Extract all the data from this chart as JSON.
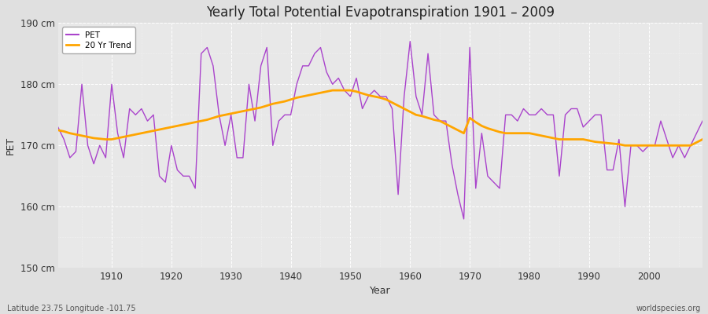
{
  "title": "Yearly Total Potential Evapotranspiration 1901 – 2009",
  "xlabel": "Year",
  "ylabel": "PET",
  "lat_lon_label": "Latitude 23.75 Longitude -101.75",
  "source_label": "worldspecies.org",
  "pet_color": "#AA44CC",
  "trend_color": "#FFA500",
  "fig_bg_color": "#E0E0E0",
  "plot_bg_color": "#E8E8E8",
  "ylim": [
    150,
    190
  ],
  "yticks": [
    150,
    160,
    170,
    180,
    190
  ],
  "ytick_labels": [
    "150 cm",
    "160 cm",
    "170 cm",
    "180 cm",
    "190 cm"
  ],
  "xlim": [
    1901,
    2009
  ],
  "years": [
    1901,
    1902,
    1903,
    1904,
    1905,
    1906,
    1907,
    1908,
    1909,
    1910,
    1911,
    1912,
    1913,
    1914,
    1915,
    1916,
    1917,
    1918,
    1919,
    1920,
    1921,
    1922,
    1923,
    1924,
    1925,
    1926,
    1927,
    1928,
    1929,
    1930,
    1931,
    1932,
    1933,
    1934,
    1935,
    1936,
    1937,
    1938,
    1939,
    1940,
    1941,
    1942,
    1943,
    1944,
    1945,
    1946,
    1947,
    1948,
    1949,
    1950,
    1951,
    1952,
    1953,
    1954,
    1955,
    1956,
    1957,
    1958,
    1959,
    1960,
    1961,
    1962,
    1963,
    1964,
    1965,
    1966,
    1967,
    1968,
    1969,
    1970,
    1971,
    1972,
    1973,
    1974,
    1975,
    1976,
    1977,
    1978,
    1979,
    1980,
    1981,
    1982,
    1983,
    1984,
    1985,
    1986,
    1987,
    1988,
    1989,
    1990,
    1991,
    1992,
    1993,
    1994,
    1995,
    1996,
    1997,
    1998,
    1999,
    2000,
    2001,
    2002,
    2003,
    2004,
    2005,
    2006,
    2007,
    2008,
    2009
  ],
  "pet_values": [
    173,
    171,
    168,
    169,
    180,
    170,
    167,
    170,
    168,
    180,
    172,
    168,
    176,
    175,
    176,
    174,
    175,
    165,
    164,
    170,
    166,
    165,
    165,
    163,
    185,
    186,
    183,
    175,
    170,
    175,
    168,
    168,
    180,
    174,
    183,
    186,
    170,
    174,
    175,
    175,
    180,
    183,
    183,
    185,
    186,
    182,
    180,
    181,
    179,
    178,
    181,
    176,
    178,
    179,
    178,
    178,
    176,
    162,
    178,
    187,
    178,
    175,
    185,
    175,
    174,
    174,
    167,
    162,
    158,
    186,
    163,
    172,
    165,
    164,
    163,
    175,
    175,
    174,
    176,
    175,
    175,
    176,
    175,
    175,
    165,
    175,
    176,
    176,
    173,
    174,
    175,
    175,
    166,
    166,
    171,
    160,
    170,
    170,
    169,
    170,
    170,
    174,
    171,
    168,
    170,
    168,
    170,
    172,
    174
  ],
  "trend_values": [
    172.5,
    172.3,
    172.0,
    171.8,
    171.6,
    171.4,
    171.2,
    171.1,
    171.0,
    171.0,
    171.2,
    171.4,
    171.6,
    171.8,
    172.0,
    172.2,
    172.4,
    172.6,
    172.8,
    173.0,
    173.2,
    173.4,
    173.6,
    173.8,
    174.0,
    174.2,
    174.5,
    174.8,
    175.0,
    175.2,
    175.4,
    175.6,
    175.8,
    176.0,
    176.2,
    176.5,
    176.8,
    177.0,
    177.2,
    177.5,
    177.8,
    178.0,
    178.2,
    178.4,
    178.6,
    178.8,
    179.0,
    179.0,
    179.0,
    179.0,
    178.8,
    178.5,
    178.2,
    178.0,
    177.8,
    177.5,
    177.0,
    176.5,
    176.0,
    175.5,
    175.0,
    174.8,
    174.5,
    174.2,
    174.0,
    173.5,
    173.0,
    172.5,
    172.0,
    174.5,
    173.8,
    173.2,
    172.8,
    172.5,
    172.2,
    172.0,
    172.0,
    172.0,
    172.0,
    172.0,
    171.8,
    171.6,
    171.4,
    171.2,
    171.0,
    171.0,
    171.0,
    171.0,
    171.0,
    170.8,
    170.6,
    170.5,
    170.4,
    170.3,
    170.2,
    170.0,
    170.0,
    170.0,
    170.0,
    170.0,
    170.0,
    170.0,
    170.0,
    170.0,
    170.0,
    170.0,
    170.0,
    170.5,
    171.0
  ]
}
